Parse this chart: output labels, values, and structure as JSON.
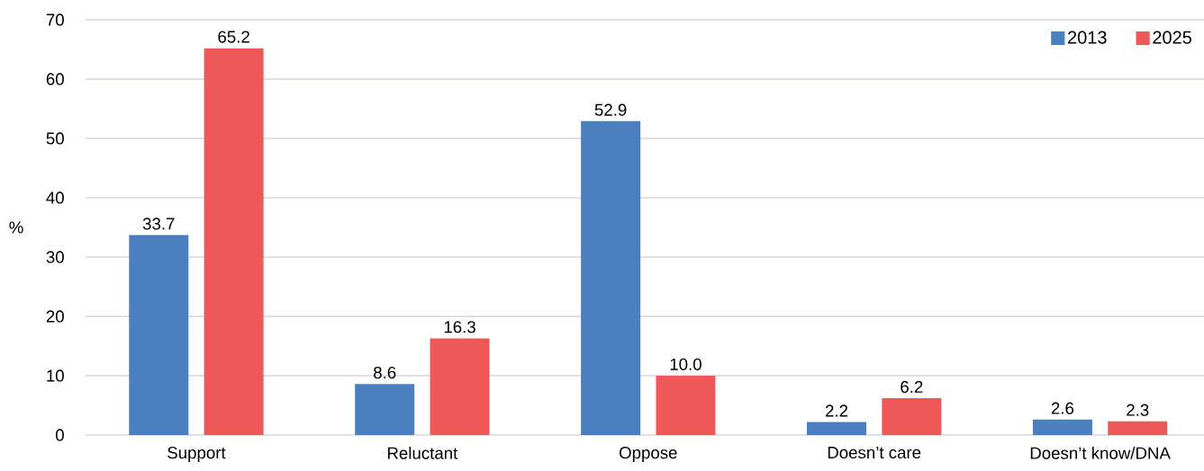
{
  "chart_data": {
    "type": "bar",
    "ylabel": "%",
    "categories": [
      "Support",
      "Reluctant",
      "Oppose",
      "Doesn’t care",
      "Doesn’t know/DNA"
    ],
    "series": [
      {
        "name": "2013",
        "color": "#4a7fc0",
        "values": [
          33.7,
          8.6,
          52.9,
          2.2,
          2.6
        ],
        "value_labels": [
          "33.7",
          "8.6",
          "52.9",
          "2.2",
          "2.6"
        ]
      },
      {
        "name": "2025",
        "color": "#ee5858",
        "values": [
          65.2,
          16.3,
          10.0,
          6.2,
          2.3
        ],
        "value_labels": [
          "65.2",
          "16.3",
          "10.0",
          "6.2",
          "2.3"
        ]
      }
    ],
    "ylim": [
      0,
      70
    ],
    "yticks": [
      0,
      10,
      20,
      30,
      40,
      50,
      60,
      70
    ],
    "grid": "y",
    "legend": "top right"
  }
}
